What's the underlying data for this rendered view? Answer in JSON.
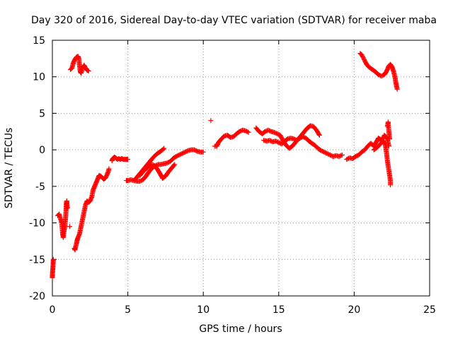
{
  "chart_data": {
    "type": "scatter",
    "title": "Day 320 of 2016, Sidereal Day-to-day VTEC variation (SDTVAR) for receiver maba",
    "xlabel": "GPS time / hours",
    "ylabel": "SDTVAR / TECUs",
    "xlim": [
      0,
      25
    ],
    "ylim": [
      -20,
      15
    ],
    "xticks": [
      0,
      5,
      10,
      15,
      20,
      25
    ],
    "yticks": [
      -20,
      -15,
      -10,
      -5,
      0,
      5,
      10,
      15
    ],
    "xtick_labels": [
      "0",
      "5",
      "10",
      "15",
      "20",
      "25"
    ],
    "ytick_labels": [
      "-20",
      "-15",
      "-10",
      "-5",
      "0",
      "5",
      "10",
      "15"
    ],
    "grid": true,
    "marker": "plus",
    "color": "#ff0000",
    "series": [
      {
        "segments": [
          [
            [
              0.0,
              -17.5
            ],
            [
              0.0,
              -17.0
            ],
            [
              0.02,
              -16.5
            ],
            [
              0.04,
              -16.0
            ],
            [
              0.05,
              -15.5
            ],
            [
              0.06,
              -15.0
            ]
          ],
          [
            [
              0.35,
              -9.0
            ],
            [
              0.45,
              -8.8
            ],
            [
              0.55,
              -9.5
            ],
            [
              0.62,
              -10.0
            ],
            [
              0.68,
              -11.5
            ],
            [
              0.72,
              -12.0
            ],
            [
              0.78,
              -11.0
            ],
            [
              0.82,
              -10.5
            ],
            [
              0.87,
              -9.5
            ],
            [
              0.9,
              -8.5
            ],
            [
              0.92,
              -7.5
            ],
            [
              0.95,
              -7.0
            ],
            [
              1.0,
              -8.0
            ]
          ],
          [
            [
              1.15,
              -10.5
            ]
          ],
          [
            [
              1.2,
              11.0
            ],
            [
              1.3,
              11.2
            ],
            [
              1.4,
              12.0
            ],
            [
              1.5,
              12.4
            ],
            [
              1.6,
              12.7
            ],
            [
              1.7,
              12.8
            ],
            [
              1.75,
              12.5
            ],
            [
              1.8,
              11.5
            ],
            [
              1.85,
              10.7
            ],
            [
              1.9,
              10.5
            ],
            [
              2.0,
              11.2
            ],
            [
              2.1,
              11.6
            ],
            [
              2.2,
              11.2
            ],
            [
              2.3,
              10.9
            ],
            [
              2.4,
              10.8
            ]
          ],
          [
            [
              1.45,
              -13.5
            ],
            [
              1.5,
              -13.7
            ],
            [
              1.55,
              -13.2
            ],
            [
              1.6,
              -12.8
            ],
            [
              1.65,
              -12.3
            ],
            [
              1.7,
              -12.0
            ],
            [
              1.8,
              -11.5
            ],
            [
              1.9,
              -10.5
            ],
            [
              2.0,
              -9.5
            ],
            [
              2.1,
              -8.5
            ],
            [
              2.2,
              -7.5
            ],
            [
              2.3,
              -7.0
            ],
            [
              2.4,
              -7.2
            ],
            [
              2.5,
              -7.0
            ],
            [
              2.6,
              -6.5
            ],
            [
              2.7,
              -5.5
            ],
            [
              2.8,
              -5.0
            ],
            [
              2.9,
              -4.5
            ],
            [
              3.0,
              -4.0
            ],
            [
              3.1,
              -3.5
            ],
            [
              3.2,
              -3.6
            ],
            [
              3.3,
              -3.8
            ],
            [
              3.4,
              -4.0
            ],
            [
              3.5,
              -3.9
            ],
            [
              3.6,
              -3.5
            ],
            [
              3.7,
              -3.0
            ],
            [
              3.75,
              -2.6
            ]
          ],
          [
            [
              3.95,
              -1.5
            ],
            [
              4.0,
              -1.2
            ],
            [
              4.1,
              -1.0
            ],
            [
              4.2,
              -1.1
            ],
            [
              4.3,
              -1.3
            ],
            [
              4.4,
              -1.2
            ],
            [
              4.5,
              -1.3
            ],
            [
              4.6,
              -1.2
            ],
            [
              4.7,
              -1.3
            ],
            [
              4.8,
              -1.3
            ],
            [
              4.9,
              -1.3
            ],
            [
              5.0,
              -1.3
            ]
          ],
          [
            [
              4.9,
              -4.2
            ],
            [
              5.0,
              -4.2
            ],
            [
              5.2,
              -4.1
            ],
            [
              5.4,
              -4.2
            ],
            [
              5.6,
              -4.3
            ],
            [
              5.8,
              -4.3
            ],
            [
              6.0,
              -4.1
            ],
            [
              6.2,
              -3.6
            ],
            [
              6.4,
              -3.0
            ],
            [
              6.6,
              -2.5
            ],
            [
              6.8,
              -2.2
            ],
            [
              7.0,
              -2.0
            ],
            [
              7.2,
              -2.0
            ],
            [
              7.4,
              -1.9
            ],
            [
              7.6,
              -1.8
            ],
            [
              7.8,
              -1.6
            ],
            [
              8.0,
              -1.2
            ],
            [
              8.2,
              -0.9
            ],
            [
              8.4,
              -0.7
            ],
            [
              8.6,
              -0.5
            ],
            [
              8.8,
              -0.3
            ],
            [
              9.0,
              -0.1
            ],
            [
              9.2,
              0.0
            ],
            [
              9.4,
              0.0
            ],
            [
              9.6,
              -0.2
            ],
            [
              9.8,
              -0.3
            ],
            [
              10.0,
              -0.3
            ]
          ],
          [
            [
              5.5,
              -4.0
            ],
            [
              5.7,
              -3.5
            ],
            [
              5.9,
              -3.0
            ],
            [
              6.1,
              -2.5
            ],
            [
              6.3,
              -2.0
            ],
            [
              6.5,
              -1.5
            ],
            [
              6.7,
              -1.0
            ],
            [
              6.9,
              -0.6
            ],
            [
              7.1,
              -0.3
            ],
            [
              7.3,
              0.0
            ],
            [
              7.4,
              0.2
            ]
          ],
          [
            [
              5.8,
              -3.5
            ],
            [
              6.0,
              -3.0
            ],
            [
              6.2,
              -2.6
            ],
            [
              6.4,
              -2.2
            ],
            [
              6.6,
              -2.0
            ],
            [
              6.8,
              -2.2
            ],
            [
              7.0,
              -2.8
            ],
            [
              7.2,
              -3.5
            ],
            [
              7.3,
              -3.9
            ],
            [
              7.5,
              -3.6
            ],
            [
              7.7,
              -3.0
            ],
            [
              7.9,
              -2.5
            ],
            [
              8.1,
              -2.0
            ]
          ],
          [
            [
              10.5,
              4.0
            ]
          ],
          [
            [
              10.75,
              0.5
            ],
            [
              10.9,
              0.5
            ],
            [
              11.0,
              1.0
            ],
            [
              11.2,
              1.5
            ],
            [
              11.4,
              1.9
            ],
            [
              11.6,
              2.0
            ],
            [
              11.8,
              1.7
            ],
            [
              12.0,
              1.8
            ],
            [
              12.2,
              2.2
            ],
            [
              12.4,
              2.5
            ],
            [
              12.6,
              2.7
            ],
            [
              12.8,
              2.6
            ],
            [
              13.0,
              2.4
            ]
          ],
          [
            [
              13.5,
              3.0
            ],
            [
              13.7,
              2.5
            ],
            [
              13.9,
              2.2
            ],
            [
              14.1,
              2.5
            ],
            [
              14.3,
              2.7
            ],
            [
              14.5,
              2.5
            ],
            [
              14.7,
              2.4
            ],
            [
              14.9,
              2.2
            ],
            [
              15.1,
              2.0
            ],
            [
              15.3,
              1.2
            ],
            [
              15.5,
              0.6
            ],
            [
              15.7,
              0.2
            ],
            [
              15.9,
              0.5
            ],
            [
              16.1,
              1.0
            ],
            [
              16.3,
              1.5
            ],
            [
              16.5,
              2.0
            ],
            [
              16.7,
              2.5
            ],
            [
              16.9,
              3.0
            ],
            [
              17.1,
              3.3
            ],
            [
              17.3,
              3.2
            ],
            [
              17.5,
              2.7
            ],
            [
              17.7,
              2.0
            ]
          ],
          [
            [
              14.0,
              1.3
            ],
            [
              14.2,
              1.2
            ],
            [
              14.4,
              1.3
            ],
            [
              14.6,
              1.1
            ],
            [
              14.8,
              1.2
            ],
            [
              15.0,
              1.0
            ],
            [
              15.2,
              0.8
            ],
            [
              15.4,
              1.2
            ],
            [
              15.6,
              1.5
            ],
            [
              15.8,
              1.6
            ],
            [
              16.0,
              1.5
            ],
            [
              16.2,
              1.3
            ],
            [
              16.4,
              1.6
            ],
            [
              16.6,
              1.8
            ],
            [
              16.8,
              1.6
            ],
            [
              17.0,
              1.2
            ],
            [
              17.2,
              0.9
            ],
            [
              17.4,
              0.6
            ],
            [
              17.6,
              0.2
            ],
            [
              17.8,
              -0.1
            ],
            [
              18.0,
              -0.3
            ],
            [
              18.2,
              -0.5
            ],
            [
              18.4,
              -0.7
            ],
            [
              18.6,
              -0.9
            ],
            [
              18.8,
              -0.8
            ],
            [
              19.0,
              -0.9
            ],
            [
              19.2,
              -0.7
            ]
          ],
          [
            [
              19.5,
              -1.3
            ],
            [
              19.7,
              -1.1
            ],
            [
              19.9,
              -1.2
            ],
            [
              20.1,
              -0.9
            ],
            [
              20.3,
              -0.7
            ],
            [
              20.5,
              -0.3
            ],
            [
              20.7,
              0.0
            ],
            [
              20.9,
              0.5
            ],
            [
              21.1,
              0.9
            ],
            [
              21.3,
              0.5
            ],
            [
              21.5,
              1.2
            ],
            [
              21.6,
              1.6
            ],
            [
              21.7,
              1.5
            ],
            [
              21.8,
              1.2
            ],
            [
              21.9,
              1.6
            ],
            [
              22.0,
              2.0
            ],
            [
              22.1,
              1.8
            ],
            [
              22.2,
              1.5
            ],
            [
              22.3,
              0.5
            ]
          ],
          [
            [
              21.3,
              0.0
            ],
            [
              21.5,
              0.3
            ],
            [
              21.7,
              0.7
            ],
            [
              21.9,
              1.2
            ],
            [
              22.05,
              0.9
            ],
            [
              22.15,
              -0.5
            ],
            [
              22.2,
              -1.5
            ],
            [
              22.25,
              -2.2
            ],
            [
              22.3,
              -2.8
            ],
            [
              22.35,
              -3.5
            ],
            [
              22.4,
              -4.2
            ],
            [
              22.4,
              -4.8
            ]
          ],
          [
            [
              22.2,
              3.2
            ],
            [
              22.25,
              3.8
            ],
            [
              22.3,
              2.5
            ],
            [
              22.35,
              1.5
            ]
          ],
          [
            [
              20.4,
              13.2
            ],
            [
              20.5,
              13.0
            ],
            [
              20.6,
              12.6
            ],
            [
              20.7,
              12.2
            ],
            [
              20.8,
              11.8
            ],
            [
              20.9,
              11.5
            ],
            [
              21.0,
              11.3
            ],
            [
              21.2,
              11.0
            ],
            [
              21.4,
              10.7
            ],
            [
              21.6,
              10.3
            ],
            [
              21.8,
              10.1
            ],
            [
              22.0,
              10.3
            ],
            [
              22.1,
              10.6
            ],
            [
              22.2,
              11.0
            ],
            [
              22.3,
              11.5
            ],
            [
              22.4,
              11.7
            ],
            [
              22.5,
              11.4
            ],
            [
              22.6,
              10.8
            ],
            [
              22.7,
              10.0
            ],
            [
              22.75,
              9.3
            ],
            [
              22.8,
              8.8
            ],
            [
              22.85,
              8.3
            ]
          ]
        ]
      }
    ]
  }
}
